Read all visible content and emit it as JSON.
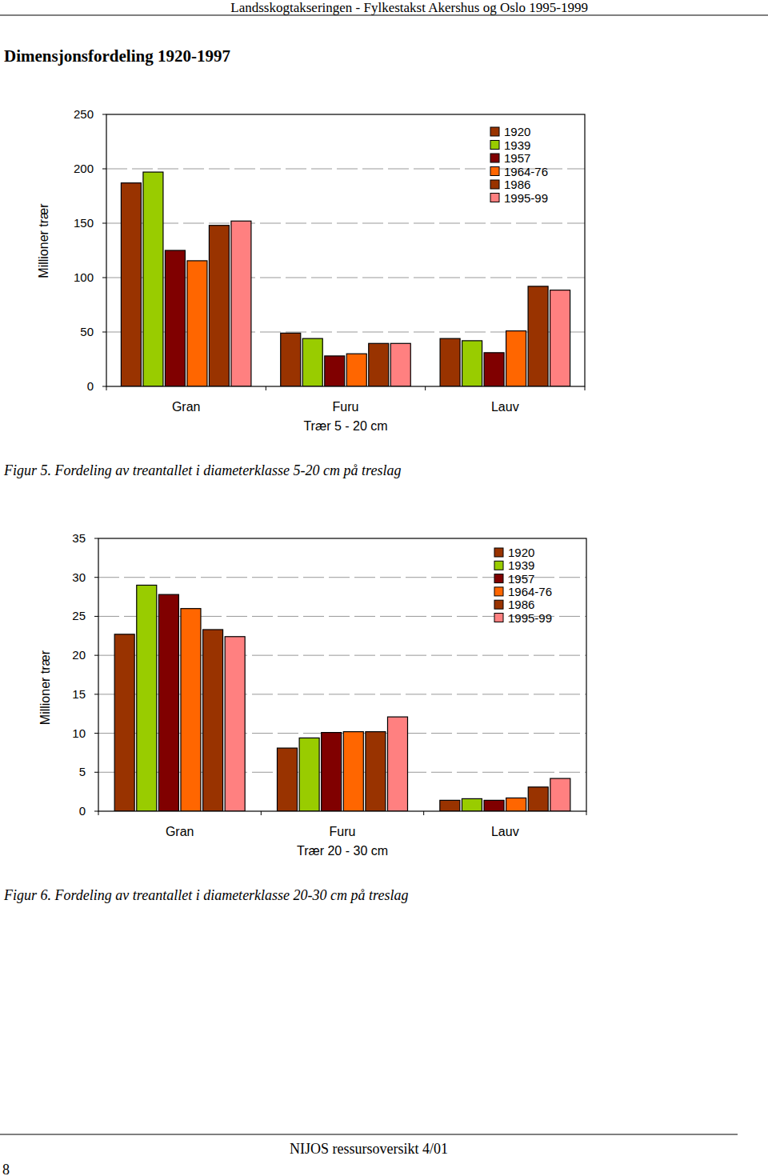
{
  "document": {
    "header": "Landsskogtakseringen - Fylkestakst Akershus og Oslo 1995-1999",
    "heading": "Dimensjonsfordeling 1920-1997",
    "captions": [
      "Figur 5. Fordeling av treantallet i diameterklasse 5-20 cm på treslag",
      "Figur 6. Fordeling av treantallet i diameterklasse 20-30 cm på treslag"
    ],
    "footer": "NIJOS ressursoversikt 4/01",
    "page_number": "8"
  },
  "chart_data": [
    {
      "type": "bar",
      "x_label": "Trær 5 - 20 cm",
      "y_label": "Millioner trær",
      "categories": [
        "Gran",
        "Furu",
        "Lauv"
      ],
      "series": [
        {
          "name": "1920",
          "color": "#993300",
          "values": [
            187,
            49,
            44
          ]
        },
        {
          "name": "1939",
          "color": "#99cc00",
          "values": [
            197,
            44,
            42
          ]
        },
        {
          "name": "1957",
          "color": "#800000",
          "values": [
            125,
            28,
            31
          ]
        },
        {
          "name": "1964-76",
          "color": "#ff6600",
          "values": [
            115.5,
            30,
            51
          ]
        },
        {
          "name": "1986",
          "color": "#993300",
          "values": [
            148,
            39.5,
            92
          ]
        },
        {
          "name": "1995-99",
          "color": "#ff8080",
          "values": [
            152,
            39.5,
            88.5
          ]
        }
      ],
      "ylim": [
        0,
        250
      ],
      "yticks": [
        0,
        50,
        100,
        150,
        200,
        250
      ],
      "grid": true,
      "legend": "top-right"
    },
    {
      "type": "bar",
      "x_label": "Trær 20 - 30 cm",
      "y_label": "Millioner trær",
      "categories": [
        "Gran",
        "Furu",
        "Lauv"
      ],
      "series": [
        {
          "name": "1920",
          "color": "#993300",
          "values": [
            22.7,
            8.1,
            1.4
          ]
        },
        {
          "name": "1939",
          "color": "#99cc00",
          "values": [
            29.0,
            9.4,
            1.6
          ]
        },
        {
          "name": "1957",
          "color": "#800000",
          "values": [
            27.8,
            10.1,
            1.4
          ]
        },
        {
          "name": "1964-76",
          "color": "#ff6600",
          "values": [
            26.0,
            10.2,
            1.7
          ]
        },
        {
          "name": "1986",
          "color": "#993300",
          "values": [
            23.3,
            10.2,
            3.1
          ]
        },
        {
          "name": "1995-99",
          "color": "#ff8080",
          "values": [
            22.4,
            12.1,
            4.2
          ]
        }
      ],
      "ylim": [
        0,
        35
      ],
      "yticks": [
        0,
        5,
        10,
        15,
        20,
        25,
        30,
        35
      ],
      "grid": true,
      "legend": "top-right"
    }
  ]
}
